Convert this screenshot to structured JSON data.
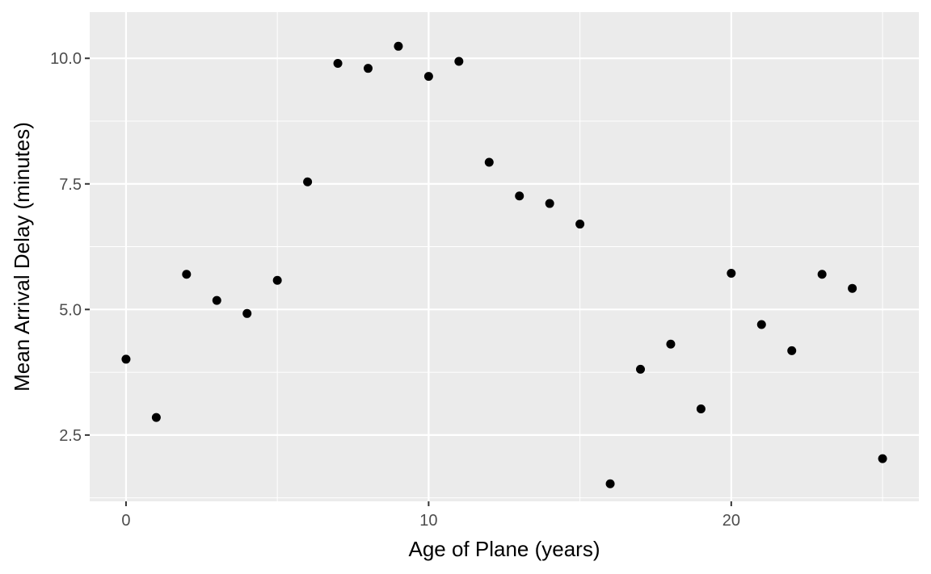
{
  "chart_data": {
    "type": "scatter",
    "title": "",
    "xlabel": "Age of Plane (years)",
    "ylabel": "Mean Arrival Delay (minutes)",
    "xlim": [
      -1.2,
      26.2
    ],
    "ylim": [
      1.18,
      10.92
    ],
    "x_ticks": [
      0,
      10,
      20
    ],
    "x_tick_labels": [
      "0",
      "10",
      "20"
    ],
    "y_ticks": [
      2.5,
      5.0,
      7.5,
      10.0
    ],
    "y_tick_labels": [
      "2.5",
      "5.0",
      "7.5",
      "10.0"
    ],
    "grid": true,
    "legend": "none",
    "colors": {
      "panel": "#ebebeb",
      "grid": "#ffffff",
      "point": "#000000",
      "tick_label": "#4d4d4d",
      "tick": "#333333"
    },
    "points": [
      {
        "x": 0,
        "y": 4.01
      },
      {
        "x": 1,
        "y": 2.85
      },
      {
        "x": 2,
        "y": 5.7
      },
      {
        "x": 3,
        "y": 5.18
      },
      {
        "x": 4,
        "y": 4.92
      },
      {
        "x": 5,
        "y": 5.58
      },
      {
        "x": 6,
        "y": 7.54
      },
      {
        "x": 7,
        "y": 9.9
      },
      {
        "x": 8,
        "y": 9.8
      },
      {
        "x": 9,
        "y": 10.24
      },
      {
        "x": 10,
        "y": 9.64
      },
      {
        "x": 11,
        "y": 9.94
      },
      {
        "x": 12,
        "y": 7.93
      },
      {
        "x": 13,
        "y": 7.26
      },
      {
        "x": 14,
        "y": 7.11
      },
      {
        "x": 15,
        "y": 6.7
      },
      {
        "x": 16,
        "y": 1.53
      },
      {
        "x": 17,
        "y": 3.81
      },
      {
        "x": 18,
        "y": 4.31
      },
      {
        "x": 19,
        "y": 3.02
      },
      {
        "x": 20,
        "y": 5.72
      },
      {
        "x": 21,
        "y": 4.7
      },
      {
        "x": 22,
        "y": 4.18
      },
      {
        "x": 23,
        "y": 5.7
      },
      {
        "x": 24,
        "y": 5.42
      },
      {
        "x": 25,
        "y": 2.03
      }
    ]
  }
}
